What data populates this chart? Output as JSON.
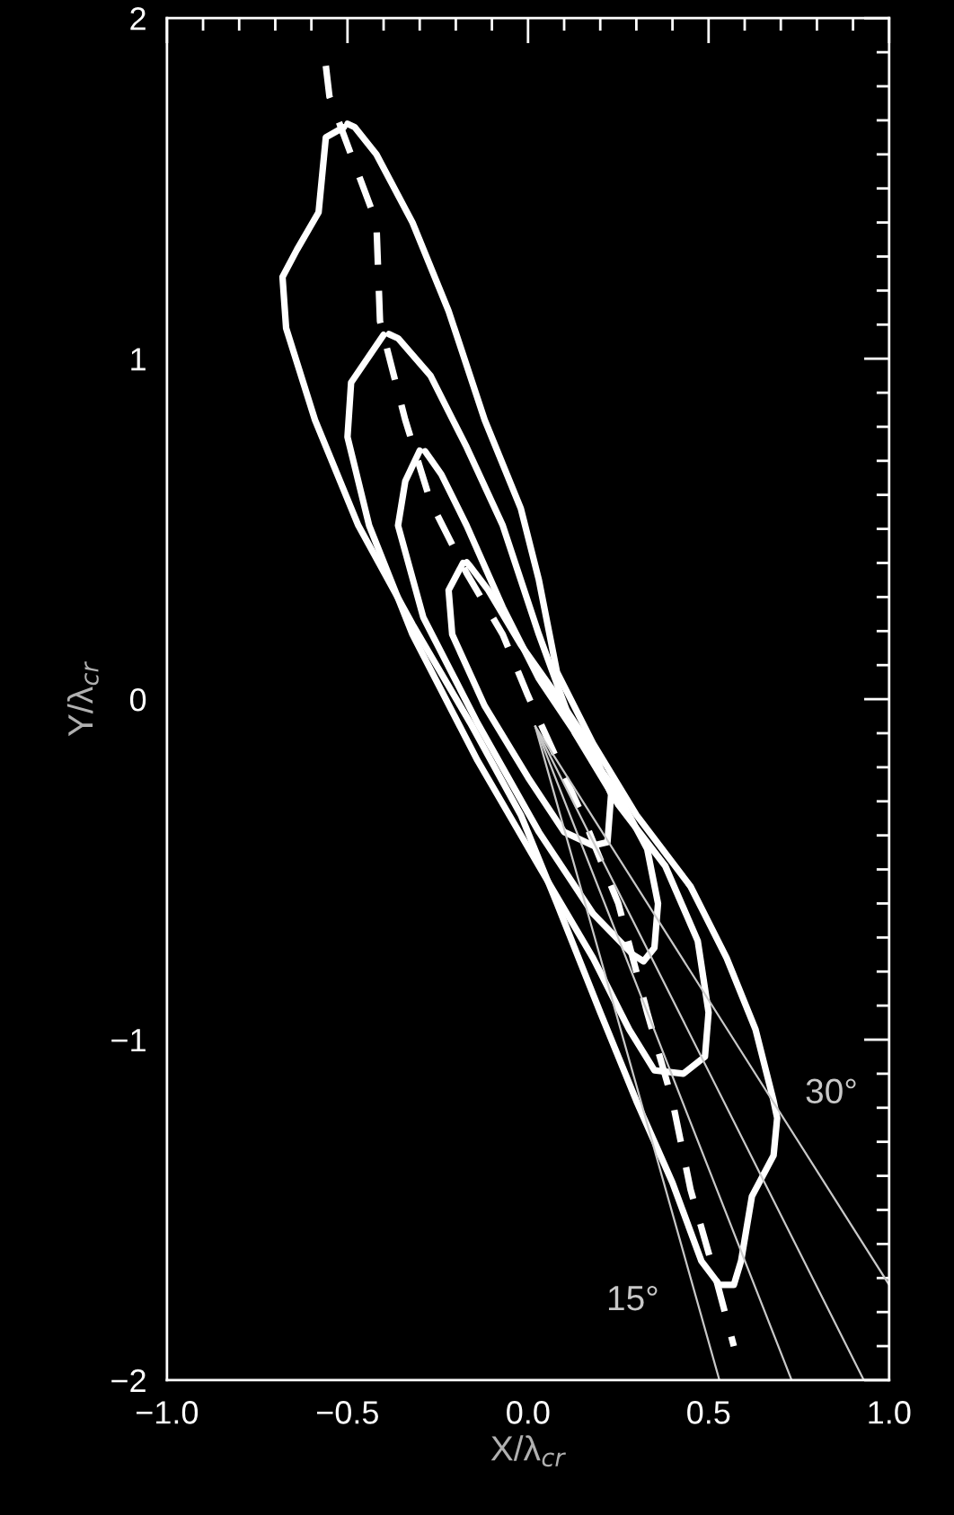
{
  "chart_data": {
    "type": "line",
    "xlabel": "X/λ$_{cr}$",
    "ylabel": "Y/λ$_{cr}$",
    "xlim": [
      -1.0,
      1.0
    ],
    "ylim": [
      -2,
      2
    ],
    "xticks": [
      {
        "value": -1.0,
        "label": "−1.0"
      },
      {
        "value": -0.5,
        "label": "−0.5"
      },
      {
        "value": 0.0,
        "label": "0.0"
      },
      {
        "value": 0.5,
        "label": "0.5"
      },
      {
        "value": 1.0,
        "label": "1.0"
      }
    ],
    "yticks": [
      {
        "value": -2,
        "label": "−2"
      },
      {
        "value": -1,
        "label": "−1"
      },
      0,
      1,
      2
    ],
    "grid": false,
    "legend": false,
    "series": [
      {
        "color": "#ffffff",
        "line_style": "solid",
        "x": [
          -0.51,
          -0.56,
          -0.58,
          -0.64,
          -0.68,
          -0.67,
          -0.59,
          -0.47,
          -0.32,
          -0.16,
          -0.02,
          0.08,
          0.2,
          0.3,
          0.4,
          0.48,
          0.53,
          0.57,
          0.59,
          0.62,
          0.68,
          0.69,
          0.68,
          0.63,
          0.55,
          0.45,
          0.3,
          0.18,
          0.08,
          0.03,
          -0.02,
          -0.12,
          -0.22,
          -0.32,
          -0.42,
          -0.48,
          -0.5
        ],
        "values": [
          1.68,
          1.65,
          1.43,
          1.32,
          1.24,
          1.09,
          0.82,
          0.51,
          0.22,
          -0.07,
          -0.34,
          -0.6,
          -0.92,
          -1.18,
          -1.42,
          -1.65,
          -1.72,
          -1.72,
          -1.65,
          -1.46,
          -1.34,
          -1.23,
          -1.18,
          -0.97,
          -0.76,
          -0.55,
          -0.34,
          -0.13,
          0.08,
          0.35,
          0.56,
          0.82,
          1.14,
          1.4,
          1.6,
          1.68,
          1.69
        ]
      },
      {
        "color": "#ffffff",
        "line_style": "solid",
        "x": [
          -0.4,
          -0.49,
          -0.5,
          -0.44,
          -0.32,
          -0.14,
          0.03,
          0.18,
          0.28,
          0.35,
          0.43,
          0.49,
          0.5,
          0.47,
          0.38,
          0.25,
          0.13,
          0.03,
          -0.07,
          -0.17,
          -0.27,
          -0.36,
          -0.385
        ],
        "values": [
          1.07,
          0.93,
          0.77,
          0.51,
          0.19,
          -0.18,
          -0.49,
          -0.76,
          -0.97,
          -1.09,
          -1.1,
          -1.05,
          -0.92,
          -0.71,
          -0.49,
          -0.31,
          -0.1,
          0.19,
          0.51,
          0.74,
          0.95,
          1.06,
          1.072
        ]
      },
      {
        "color": "#ffffff",
        "line_style": "solid",
        "x": [
          -0.3,
          -0.34,
          -0.36,
          -0.29,
          -0.14,
          0.03,
          0.18,
          0.29,
          0.32,
          0.35,
          0.36,
          0.33,
          0.25,
          0.15,
          0.03,
          -0.07,
          -0.17,
          -0.24,
          -0.285
        ],
        "values": [
          0.73,
          0.64,
          0.51,
          0.24,
          -0.07,
          -0.39,
          -0.63,
          -0.75,
          -0.77,
          -0.73,
          -0.6,
          -0.44,
          -0.28,
          -0.13,
          0.06,
          0.27,
          0.51,
          0.66,
          0.728
        ]
      },
      {
        "color": "#ffffff",
        "line_style": "solid",
        "x": [
          -0.18,
          -0.22,
          -0.21,
          -0.12,
          0.0,
          0.1,
          0.18,
          0.22,
          0.23,
          0.18,
          0.08,
          -0.02,
          -0.11,
          -0.16,
          -0.17
        ],
        "values": [
          0.4,
          0.32,
          0.19,
          -0.02,
          -0.23,
          -0.39,
          -0.43,
          -0.42,
          -0.28,
          -0.15,
          0.01,
          0.16,
          0.32,
          0.39,
          0.402
        ]
      },
      {
        "color": "#ffffff",
        "line_style": "dashed",
        "x": [
          -0.56,
          -0.55,
          -0.42,
          -0.41,
          -0.34,
          -0.27,
          -0.17,
          -0.07,
          0.0,
          0.15,
          0.25,
          0.33,
          0.4,
          0.45,
          0.52,
          0.57
        ],
        "values": [
          1.86,
          1.77,
          1.4,
          1.11,
          0.82,
          0.58,
          0.37,
          0.19,
          0.01,
          -0.34,
          -0.6,
          -0.92,
          -1.18,
          -1.44,
          -1.7,
          -1.9
        ]
      },
      {
        "color": "#c8c8c8",
        "line_style": "solid",
        "x": [
          0.02,
          0.53
        ],
        "values": [
          -0.08,
          -2.0
        ]
      },
      {
        "color": "#c8c8c8",
        "line_style": "solid",
        "x": [
          0.02,
          0.73
        ],
        "values": [
          -0.08,
          -2.0
        ]
      },
      {
        "color": "#c8c8c8",
        "line_style": "solid",
        "x": [
          0.02,
          0.93
        ],
        "values": [
          -0.08,
          -2.0
        ]
      },
      {
        "color": "#c8c8c8",
        "line_style": "solid",
        "x": [
          0.02,
          1.0
        ],
        "values": [
          -0.08,
          -1.72
        ]
      }
    ],
    "annotations": [
      "15°",
      "30°"
    ]
  }
}
